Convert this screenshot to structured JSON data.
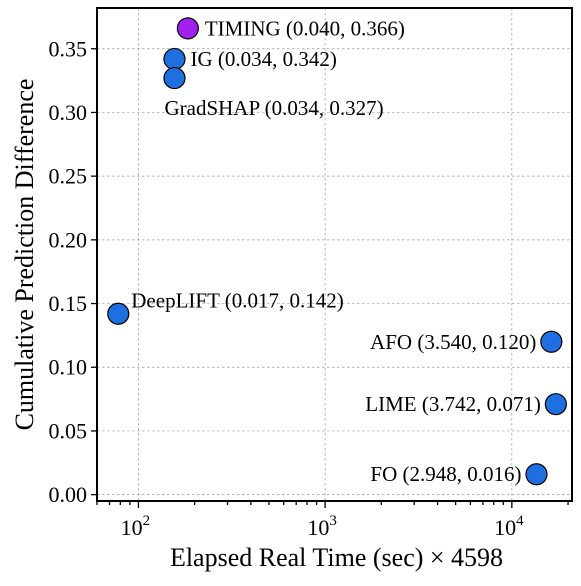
{
  "chart_data": {
    "type": "scatter",
    "xlabel": "Elapsed Real Time (sec) × 4598",
    "ylabel": "Cumulative Prediction Difference",
    "x_scale": "log",
    "xlim": [
      60,
      21000
    ],
    "ylim": [
      -0.005,
      0.382
    ],
    "x_ticks": [
      {
        "value": 100,
        "base": "10",
        "exp": "2"
      },
      {
        "value": 1000,
        "base": "10",
        "exp": "3"
      },
      {
        "value": 10000,
        "base": "10",
        "exp": "4"
      }
    ],
    "y_ticks": [
      {
        "value": 0.0,
        "label": "0.00"
      },
      {
        "value": 0.05,
        "label": "0.05"
      },
      {
        "value": 0.1,
        "label": "0.10"
      },
      {
        "value": 0.15,
        "label": "0.15"
      },
      {
        "value": 0.2,
        "label": "0.20"
      },
      {
        "value": 0.25,
        "label": "0.25"
      },
      {
        "value": 0.3,
        "label": "0.30"
      },
      {
        "value": 0.35,
        "label": "0.35"
      }
    ],
    "grid": true,
    "points": [
      {
        "label": "TIMING (0.040, 0.366)",
        "x": 184,
        "y": 0.366,
        "color": "#a020f0",
        "label_anchor": "start"
      },
      {
        "label": "IG (0.034, 0.342)",
        "x": 156,
        "y": 0.342,
        "color": "#1f6fe0",
        "label_anchor": "start"
      },
      {
        "label": "GradSHAP (0.034, 0.327)",
        "x": 156,
        "y": 0.327,
        "color": "#1f6fe0",
        "label_anchor": "start"
      },
      {
        "label": "DeepLIFT (0.017, 0.142)",
        "x": 78,
        "y": 0.142,
        "color": "#1f6fe0",
        "label_anchor": "start"
      },
      {
        "label": "AFO (3.540, 0.120)",
        "x": 16277,
        "y": 0.12,
        "color": "#1f6fe0",
        "label_anchor": "end"
      },
      {
        "label": "LIME (3.742, 0.071)",
        "x": 17205,
        "y": 0.071,
        "color": "#1f6fe0",
        "label_anchor": "end"
      },
      {
        "label": "FO (2.948, 0.016)",
        "x": 13555,
        "y": 0.016,
        "color": "#1f6fe0",
        "label_anchor": "end"
      }
    ]
  }
}
